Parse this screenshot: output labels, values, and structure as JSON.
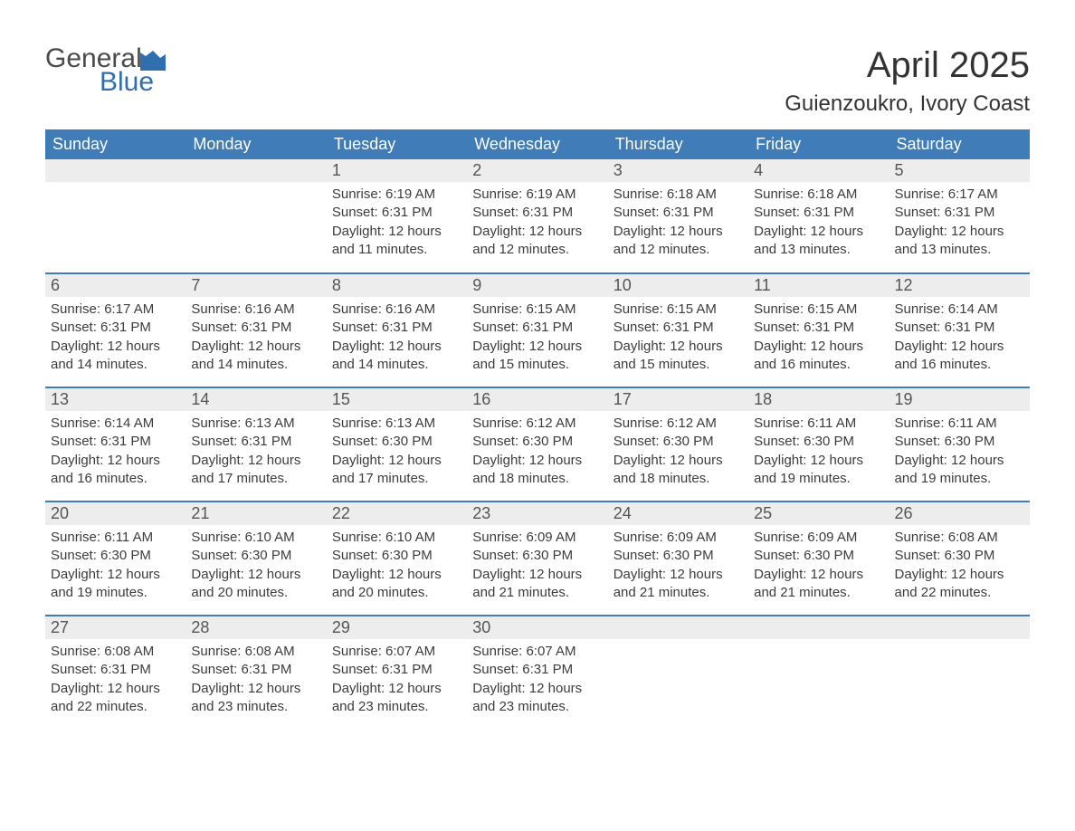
{
  "brand": {
    "general": "General",
    "blue": "Blue",
    "icon_color": "#2f6fb0",
    "text_color_general": "#4a4a4a"
  },
  "title": "April 2025",
  "location": "Guienzoukro, Ivory Coast",
  "colors": {
    "header_bg": "#3f7cb8",
    "header_text": "#ffffff",
    "daynum_bg": "#ededed",
    "daynum_text": "#555555",
    "body_text": "#3c3c3c",
    "row_divider": "#3f7cb8",
    "page_bg": "#ffffff"
  },
  "typography": {
    "title_fontsize": 40,
    "location_fontsize": 24,
    "header_fontsize": 18,
    "daynum_fontsize": 18,
    "body_fontsize": 15
  },
  "weekdays": [
    "Sunday",
    "Monday",
    "Tuesday",
    "Wednesday",
    "Thursday",
    "Friday",
    "Saturday"
  ],
  "weeks": [
    [
      {
        "empty": true
      },
      {
        "empty": true
      },
      {
        "day": "1",
        "sunrise": "Sunrise: 6:19 AM",
        "sunset": "Sunset: 6:31 PM",
        "daylight1": "Daylight: 12 hours",
        "daylight2": "and 11 minutes."
      },
      {
        "day": "2",
        "sunrise": "Sunrise: 6:19 AM",
        "sunset": "Sunset: 6:31 PM",
        "daylight1": "Daylight: 12 hours",
        "daylight2": "and 12 minutes."
      },
      {
        "day": "3",
        "sunrise": "Sunrise: 6:18 AM",
        "sunset": "Sunset: 6:31 PM",
        "daylight1": "Daylight: 12 hours",
        "daylight2": "and 12 minutes."
      },
      {
        "day": "4",
        "sunrise": "Sunrise: 6:18 AM",
        "sunset": "Sunset: 6:31 PM",
        "daylight1": "Daylight: 12 hours",
        "daylight2": "and 13 minutes."
      },
      {
        "day": "5",
        "sunrise": "Sunrise: 6:17 AM",
        "sunset": "Sunset: 6:31 PM",
        "daylight1": "Daylight: 12 hours",
        "daylight2": "and 13 minutes."
      }
    ],
    [
      {
        "day": "6",
        "sunrise": "Sunrise: 6:17 AM",
        "sunset": "Sunset: 6:31 PM",
        "daylight1": "Daylight: 12 hours",
        "daylight2": "and 14 minutes."
      },
      {
        "day": "7",
        "sunrise": "Sunrise: 6:16 AM",
        "sunset": "Sunset: 6:31 PM",
        "daylight1": "Daylight: 12 hours",
        "daylight2": "and 14 minutes."
      },
      {
        "day": "8",
        "sunrise": "Sunrise: 6:16 AM",
        "sunset": "Sunset: 6:31 PM",
        "daylight1": "Daylight: 12 hours",
        "daylight2": "and 14 minutes."
      },
      {
        "day": "9",
        "sunrise": "Sunrise: 6:15 AM",
        "sunset": "Sunset: 6:31 PM",
        "daylight1": "Daylight: 12 hours",
        "daylight2": "and 15 minutes."
      },
      {
        "day": "10",
        "sunrise": "Sunrise: 6:15 AM",
        "sunset": "Sunset: 6:31 PM",
        "daylight1": "Daylight: 12 hours",
        "daylight2": "and 15 minutes."
      },
      {
        "day": "11",
        "sunrise": "Sunrise: 6:15 AM",
        "sunset": "Sunset: 6:31 PM",
        "daylight1": "Daylight: 12 hours",
        "daylight2": "and 16 minutes."
      },
      {
        "day": "12",
        "sunrise": "Sunrise: 6:14 AM",
        "sunset": "Sunset: 6:31 PM",
        "daylight1": "Daylight: 12 hours",
        "daylight2": "and 16 minutes."
      }
    ],
    [
      {
        "day": "13",
        "sunrise": "Sunrise: 6:14 AM",
        "sunset": "Sunset: 6:31 PM",
        "daylight1": "Daylight: 12 hours",
        "daylight2": "and 16 minutes."
      },
      {
        "day": "14",
        "sunrise": "Sunrise: 6:13 AM",
        "sunset": "Sunset: 6:31 PM",
        "daylight1": "Daylight: 12 hours",
        "daylight2": "and 17 minutes."
      },
      {
        "day": "15",
        "sunrise": "Sunrise: 6:13 AM",
        "sunset": "Sunset: 6:30 PM",
        "daylight1": "Daylight: 12 hours",
        "daylight2": "and 17 minutes."
      },
      {
        "day": "16",
        "sunrise": "Sunrise: 6:12 AM",
        "sunset": "Sunset: 6:30 PM",
        "daylight1": "Daylight: 12 hours",
        "daylight2": "and 18 minutes."
      },
      {
        "day": "17",
        "sunrise": "Sunrise: 6:12 AM",
        "sunset": "Sunset: 6:30 PM",
        "daylight1": "Daylight: 12 hours",
        "daylight2": "and 18 minutes."
      },
      {
        "day": "18",
        "sunrise": "Sunrise: 6:11 AM",
        "sunset": "Sunset: 6:30 PM",
        "daylight1": "Daylight: 12 hours",
        "daylight2": "and 19 minutes."
      },
      {
        "day": "19",
        "sunrise": "Sunrise: 6:11 AM",
        "sunset": "Sunset: 6:30 PM",
        "daylight1": "Daylight: 12 hours",
        "daylight2": "and 19 minutes."
      }
    ],
    [
      {
        "day": "20",
        "sunrise": "Sunrise: 6:11 AM",
        "sunset": "Sunset: 6:30 PM",
        "daylight1": "Daylight: 12 hours",
        "daylight2": "and 19 minutes."
      },
      {
        "day": "21",
        "sunrise": "Sunrise: 6:10 AM",
        "sunset": "Sunset: 6:30 PM",
        "daylight1": "Daylight: 12 hours",
        "daylight2": "and 20 minutes."
      },
      {
        "day": "22",
        "sunrise": "Sunrise: 6:10 AM",
        "sunset": "Sunset: 6:30 PM",
        "daylight1": "Daylight: 12 hours",
        "daylight2": "and 20 minutes."
      },
      {
        "day": "23",
        "sunrise": "Sunrise: 6:09 AM",
        "sunset": "Sunset: 6:30 PM",
        "daylight1": "Daylight: 12 hours",
        "daylight2": "and 21 minutes."
      },
      {
        "day": "24",
        "sunrise": "Sunrise: 6:09 AM",
        "sunset": "Sunset: 6:30 PM",
        "daylight1": "Daylight: 12 hours",
        "daylight2": "and 21 minutes."
      },
      {
        "day": "25",
        "sunrise": "Sunrise: 6:09 AM",
        "sunset": "Sunset: 6:30 PM",
        "daylight1": "Daylight: 12 hours",
        "daylight2": "and 21 minutes."
      },
      {
        "day": "26",
        "sunrise": "Sunrise: 6:08 AM",
        "sunset": "Sunset: 6:30 PM",
        "daylight1": "Daylight: 12 hours",
        "daylight2": "and 22 minutes."
      }
    ],
    [
      {
        "day": "27",
        "sunrise": "Sunrise: 6:08 AM",
        "sunset": "Sunset: 6:31 PM",
        "daylight1": "Daylight: 12 hours",
        "daylight2": "and 22 minutes."
      },
      {
        "day": "28",
        "sunrise": "Sunrise: 6:08 AM",
        "sunset": "Sunset: 6:31 PM",
        "daylight1": "Daylight: 12 hours",
        "daylight2": "and 23 minutes."
      },
      {
        "day": "29",
        "sunrise": "Sunrise: 6:07 AM",
        "sunset": "Sunset: 6:31 PM",
        "daylight1": "Daylight: 12 hours",
        "daylight2": "and 23 minutes."
      },
      {
        "day": "30",
        "sunrise": "Sunrise: 6:07 AM",
        "sunset": "Sunset: 6:31 PM",
        "daylight1": "Daylight: 12 hours",
        "daylight2": "and 23 minutes."
      },
      {
        "empty": true
      },
      {
        "empty": true
      },
      {
        "empty": true
      }
    ]
  ]
}
